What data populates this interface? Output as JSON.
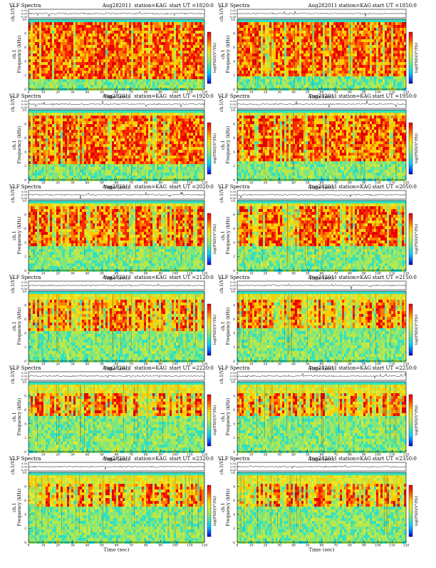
{
  "page": {
    "panel_title": "VLF Spectra",
    "date": "Aug282011",
    "station": "station=KAG",
    "start_prefix": "start  UT  =",
    "ylabel_top": "ch.1(V)",
    "ylabel_main": "ch.1\nFrequency (kHz)",
    "cbar_label": "log(PSD)(V²/Hz)",
    "xlabel": "Time  (sec)"
  },
  "chart_data": [
    {
      "type": "heatmap",
      "title": "VLF Spectra",
      "start_ut": "1820:0",
      "xlim": [
        0,
        120
      ],
      "ylim": [
        0,
        10
      ],
      "top_ylim": [
        -0.5,
        0.5
      ],
      "xticks": [
        0,
        10,
        20,
        30,
        40,
        50,
        60,
        70,
        80,
        90,
        100,
        110,
        120
      ],
      "yticks": [
        0,
        2,
        4,
        6,
        8,
        10
      ],
      "top_yticks": [
        "0.50",
        "0.00",
        "-0.50"
      ],
      "red_top": 9.6,
      "red_bottom": 1.8,
      "intensity": 0.9
    },
    {
      "type": "heatmap",
      "title": "VLF Spectra",
      "start_ut": "1850:0",
      "xlim": [
        0,
        120
      ],
      "ylim": [
        0,
        10
      ],
      "top_ylim": [
        -0.5,
        0.5
      ],
      "xticks": [
        0,
        10,
        20,
        30,
        40,
        50,
        60,
        70,
        80,
        90,
        100,
        110,
        120
      ],
      "yticks": [
        0,
        2,
        4,
        6,
        8,
        10
      ],
      "top_yticks": [
        "0.50",
        "0.00",
        "-0.50"
      ],
      "red_top": 9.6,
      "red_bottom": 2.0,
      "intensity": 0.88
    },
    {
      "type": "heatmap",
      "title": "VLF Spectra",
      "start_ut": "1920:0",
      "xlim": [
        0,
        120
      ],
      "ylim": [
        0,
        10
      ],
      "top_ylim": [
        -0.5,
        0.5
      ],
      "xticks": [
        0,
        10,
        20,
        30,
        40,
        50,
        60,
        70,
        80,
        90,
        100,
        110,
        120
      ],
      "yticks": [
        0,
        2,
        4,
        6,
        8,
        10
      ],
      "top_yticks": [
        "0.50",
        "0.00",
        "-0.50"
      ],
      "red_top": 9.4,
      "red_bottom": 2.5,
      "intensity": 0.75
    },
    {
      "type": "heatmap",
      "title": "VLF Spectra",
      "start_ut": "1950:0",
      "xlim": [
        0,
        120
      ],
      "ylim": [
        0,
        10
      ],
      "top_ylim": [
        -0.5,
        0.5
      ],
      "xticks": [
        0,
        10,
        20,
        30,
        40,
        50,
        60,
        70,
        80,
        90,
        100,
        110,
        120
      ],
      "yticks": [
        0,
        2,
        4,
        6,
        8,
        10
      ],
      "top_yticks": [
        "0.50",
        "0.00",
        "-0.50"
      ],
      "red_top": 9.4,
      "red_bottom": 2.7,
      "intensity": 0.75
    },
    {
      "type": "heatmap",
      "title": "VLF Spectra",
      "start_ut": "2020:0",
      "xlim": [
        0,
        120
      ],
      "ylim": [
        0,
        10
      ],
      "top_ylim": [
        -0.5,
        0.5
      ],
      "xticks": [
        0,
        10,
        20,
        30,
        40,
        50,
        60,
        70,
        80,
        90,
        100,
        110,
        120
      ],
      "yticks": [
        0,
        2,
        4,
        6,
        8,
        10
      ],
      "top_yticks": [
        "0.50",
        "0.00",
        "-0.50"
      ],
      "red_top": 9.2,
      "red_bottom": 3.5,
      "intensity": 0.65
    },
    {
      "type": "heatmap",
      "title": "VLF Spectra",
      "start_ut": "2050:0",
      "xlim": [
        0,
        120
      ],
      "ylim": [
        0,
        10
      ],
      "top_ylim": [
        -0.5,
        0.5
      ],
      "xticks": [
        0,
        10,
        20,
        30,
        40,
        50,
        60,
        70,
        80,
        90,
        100,
        110,
        120
      ],
      "yticks": [
        0,
        2,
        4,
        6,
        8,
        10
      ],
      "top_yticks": [
        "0.50",
        "0.00",
        "-0.50"
      ],
      "red_top": 9.2,
      "red_bottom": 3.8,
      "intensity": 0.62
    },
    {
      "type": "heatmap",
      "title": "VLF Spectra",
      "start_ut": "2120:0",
      "xlim": [
        0,
        120
      ],
      "ylim": [
        0,
        10
      ],
      "top_ylim": [
        -0.5,
        0.5
      ],
      "xticks": [
        0,
        10,
        20,
        30,
        40,
        50,
        60,
        70,
        80,
        90,
        100,
        110,
        120
      ],
      "yticks": [
        0,
        2,
        4,
        6,
        8,
        10
      ],
      "top_yticks": [
        "0.50",
        "0.00",
        "-0.50"
      ],
      "red_top": 8.8,
      "red_bottom": 4.6,
      "intensity": 0.55
    },
    {
      "type": "heatmap",
      "title": "VLF Spectra",
      "start_ut": "2150:0",
      "xlim": [
        0,
        120
      ],
      "ylim": [
        0,
        10
      ],
      "top_ylim": [
        -0.5,
        0.5
      ],
      "xticks": [
        0,
        10,
        20,
        30,
        40,
        50,
        60,
        70,
        80,
        90,
        100,
        110,
        120
      ],
      "yticks": [
        0,
        2,
        4,
        6,
        8,
        10
      ],
      "top_yticks": [
        "0.50",
        "0.00",
        "-0.50"
      ],
      "red_top": 8.8,
      "red_bottom": 4.8,
      "intensity": 0.55
    },
    {
      "type": "heatmap",
      "title": "VLF Spectra",
      "start_ut": "2220:0",
      "xlim": [
        0,
        120
      ],
      "ylim": [
        0,
        10
      ],
      "top_ylim": [
        -0.5,
        0.5
      ],
      "xticks": [
        0,
        10,
        20,
        30,
        40,
        50,
        60,
        70,
        80,
        90,
        100,
        110,
        120
      ],
      "yticks": [
        0,
        2,
        4,
        6,
        8,
        10
      ],
      "top_yticks": [
        "0.50",
        "0.00",
        "-0.50"
      ],
      "red_top": 8.6,
      "red_bottom": 5.2,
      "intensity": 0.48
    },
    {
      "type": "heatmap",
      "title": "VLF Spectra",
      "start_ut": "2250:0",
      "xlim": [
        0,
        120
      ],
      "ylim": [
        0,
        10
      ],
      "top_ylim": [
        -0.5,
        0.5
      ],
      "xticks": [
        0,
        10,
        20,
        30,
        40,
        50,
        60,
        70,
        80,
        90,
        100,
        110,
        120
      ],
      "yticks": [
        0,
        2,
        4,
        6,
        8,
        10
      ],
      "top_yticks": [
        "0.50",
        "0.00",
        "-0.50"
      ],
      "red_top": 8.6,
      "red_bottom": 5.3,
      "intensity": 0.46
    },
    {
      "type": "heatmap",
      "title": "VLF Spectra",
      "start_ut": "2320:0",
      "xlim": [
        0,
        120
      ],
      "ylim": [
        0,
        10
      ],
      "top_ylim": [
        -0.5,
        0.5
      ],
      "xticks": [
        0,
        10,
        20,
        30,
        40,
        50,
        60,
        70,
        80,
        90,
        100,
        110,
        120
      ],
      "yticks": [
        0,
        2,
        4,
        6,
        8,
        10
      ],
      "top_yticks": [
        "0.50",
        "0.00",
        "-0.50"
      ],
      "red_top": 8.4,
      "red_bottom": 5.4,
      "intensity": 0.42
    },
    {
      "type": "heatmap",
      "title": "VLF Spectra",
      "start_ut": "2350:0",
      "xlim": [
        0,
        120
      ],
      "ylim": [
        0,
        10
      ],
      "top_ylim": [
        -0.5,
        0.5
      ],
      "xticks": [
        0,
        10,
        20,
        30,
        40,
        50,
        60,
        70,
        80,
        90,
        100,
        110,
        120
      ],
      "yticks": [
        0,
        2,
        4,
        6,
        8,
        10
      ],
      "top_yticks": [
        "0.50",
        "0.00",
        "-0.50"
      ],
      "red_top": 8.4,
      "red_bottom": 5.5,
      "intensity": 0.42
    }
  ],
  "colors": {
    "cmap": [
      "#0000cc",
      "#0066ff",
      "#00ccff",
      "#33e0c0",
      "#7ee67e",
      "#b8e84a",
      "#e8e82a",
      "#ffcc00",
      "#ff7a00",
      "#ff2a00",
      "#e60000"
    ],
    "background": "#33ccb0"
  }
}
